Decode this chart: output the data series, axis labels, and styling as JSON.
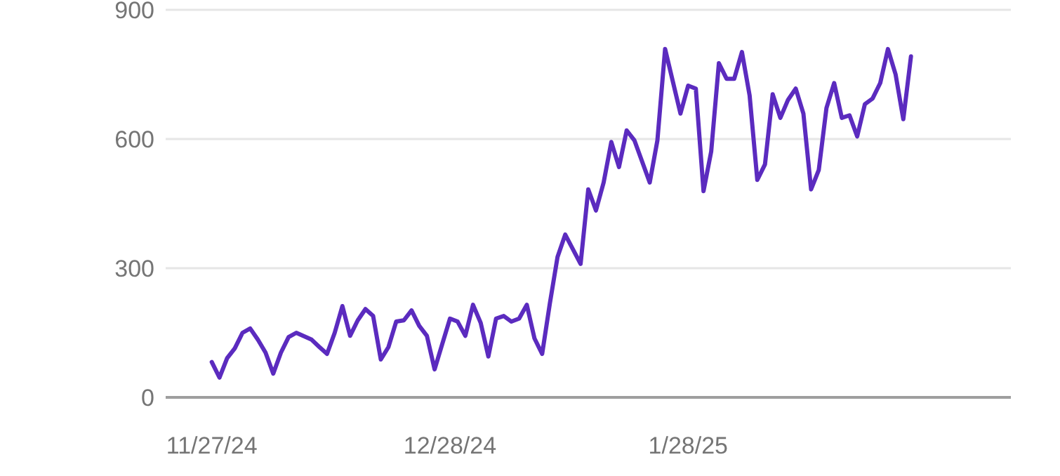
{
  "chart_data": {
    "type": "line",
    "xlim": [
      "2024-11-21",
      "2025-03-11"
    ],
    "ylim": [
      0,
      900
    ],
    "yticks": [
      0,
      300,
      600,
      900
    ],
    "xticks": [
      {
        "value": "2024-11-27",
        "label": "11/27/24"
      },
      {
        "value": "2024-12-28",
        "label": "12/28/24"
      },
      {
        "value": "2025-01-28",
        "label": "1/28/25"
      }
    ],
    "grid": "y",
    "marker": "none",
    "line_style": "solid",
    "x": [
      "2024-11-27",
      "2024-11-28",
      "2024-11-29",
      "2024-11-30",
      "2024-12-01",
      "2024-12-02",
      "2024-12-03",
      "2024-12-04",
      "2024-12-05",
      "2024-12-06",
      "2024-12-07",
      "2024-12-08",
      "2024-12-10",
      "2024-12-11",
      "2024-12-12",
      "2024-12-13",
      "2024-12-14",
      "2024-12-15",
      "2024-12-16",
      "2024-12-17",
      "2024-12-18",
      "2024-12-19",
      "2024-12-20",
      "2024-12-21",
      "2024-12-22",
      "2024-12-23",
      "2024-12-24",
      "2024-12-25",
      "2024-12-26",
      "2024-12-27",
      "2024-12-28",
      "2024-12-29",
      "2024-12-30",
      "2024-12-31",
      "2025-01-01",
      "2025-01-02",
      "2025-01-03",
      "2025-01-04",
      "2025-01-05",
      "2025-01-06",
      "2025-01-07",
      "2025-01-08",
      "2025-01-09",
      "2025-01-10",
      "2025-01-11",
      "2025-01-12",
      "2025-01-14",
      "2025-01-15",
      "2025-01-16",
      "2025-01-17",
      "2025-01-18",
      "2025-01-19",
      "2025-01-20",
      "2025-01-21",
      "2025-01-23",
      "2025-01-24",
      "2025-01-25",
      "2025-01-27",
      "2025-01-28",
      "2025-01-29",
      "2025-01-30",
      "2025-01-31",
      "2025-02-01",
      "2025-02-02",
      "2025-02-03",
      "2025-02-04",
      "2025-02-05",
      "2025-02-06",
      "2025-02-07",
      "2025-02-08",
      "2025-02-09",
      "2025-02-10",
      "2025-02-11",
      "2025-02-12",
      "2025-02-13",
      "2025-02-14",
      "2025-02-15",
      "2025-02-16",
      "2025-02-17",
      "2025-02-18",
      "2025-02-19",
      "2025-02-20",
      "2025-02-21",
      "2025-02-22",
      "2025-02-23",
      "2025-02-24",
      "2025-02-25",
      "2025-02-26"
    ],
    "series": [
      {
        "color": "#5b2bbf",
        "values": [
          82,
          46,
          91,
          114,
          150,
          160,
          134,
          104,
          55,
          104,
          140,
          150,
          134,
          117,
          101,
          150,
          212,
          143,
          179,
          205,
          189,
          88,
          117,
          176,
          179,
          202,
          166,
          143,
          65,
          124,
          183,
          176,
          143,
          215,
          173,
          95,
          183,
          189,
          176,
          183,
          215,
          137,
          101,
          218,
          326,
          378,
          310,
          483,
          434,
          499,
          593,
          535,
          620,
          597,
          499,
          597,
          809,
          659,
          724,
          717,
          479,
          571,
          776,
          740,
          740,
          802,
          701,
          505,
          541,
          704,
          649,
          691,
          717,
          659,
          483,
          528,
          672,
          730,
          649,
          655,
          606,
          681,
          694,
          730,
          809,
          750,
          646,
          792
        ]
      }
    ]
  }
}
